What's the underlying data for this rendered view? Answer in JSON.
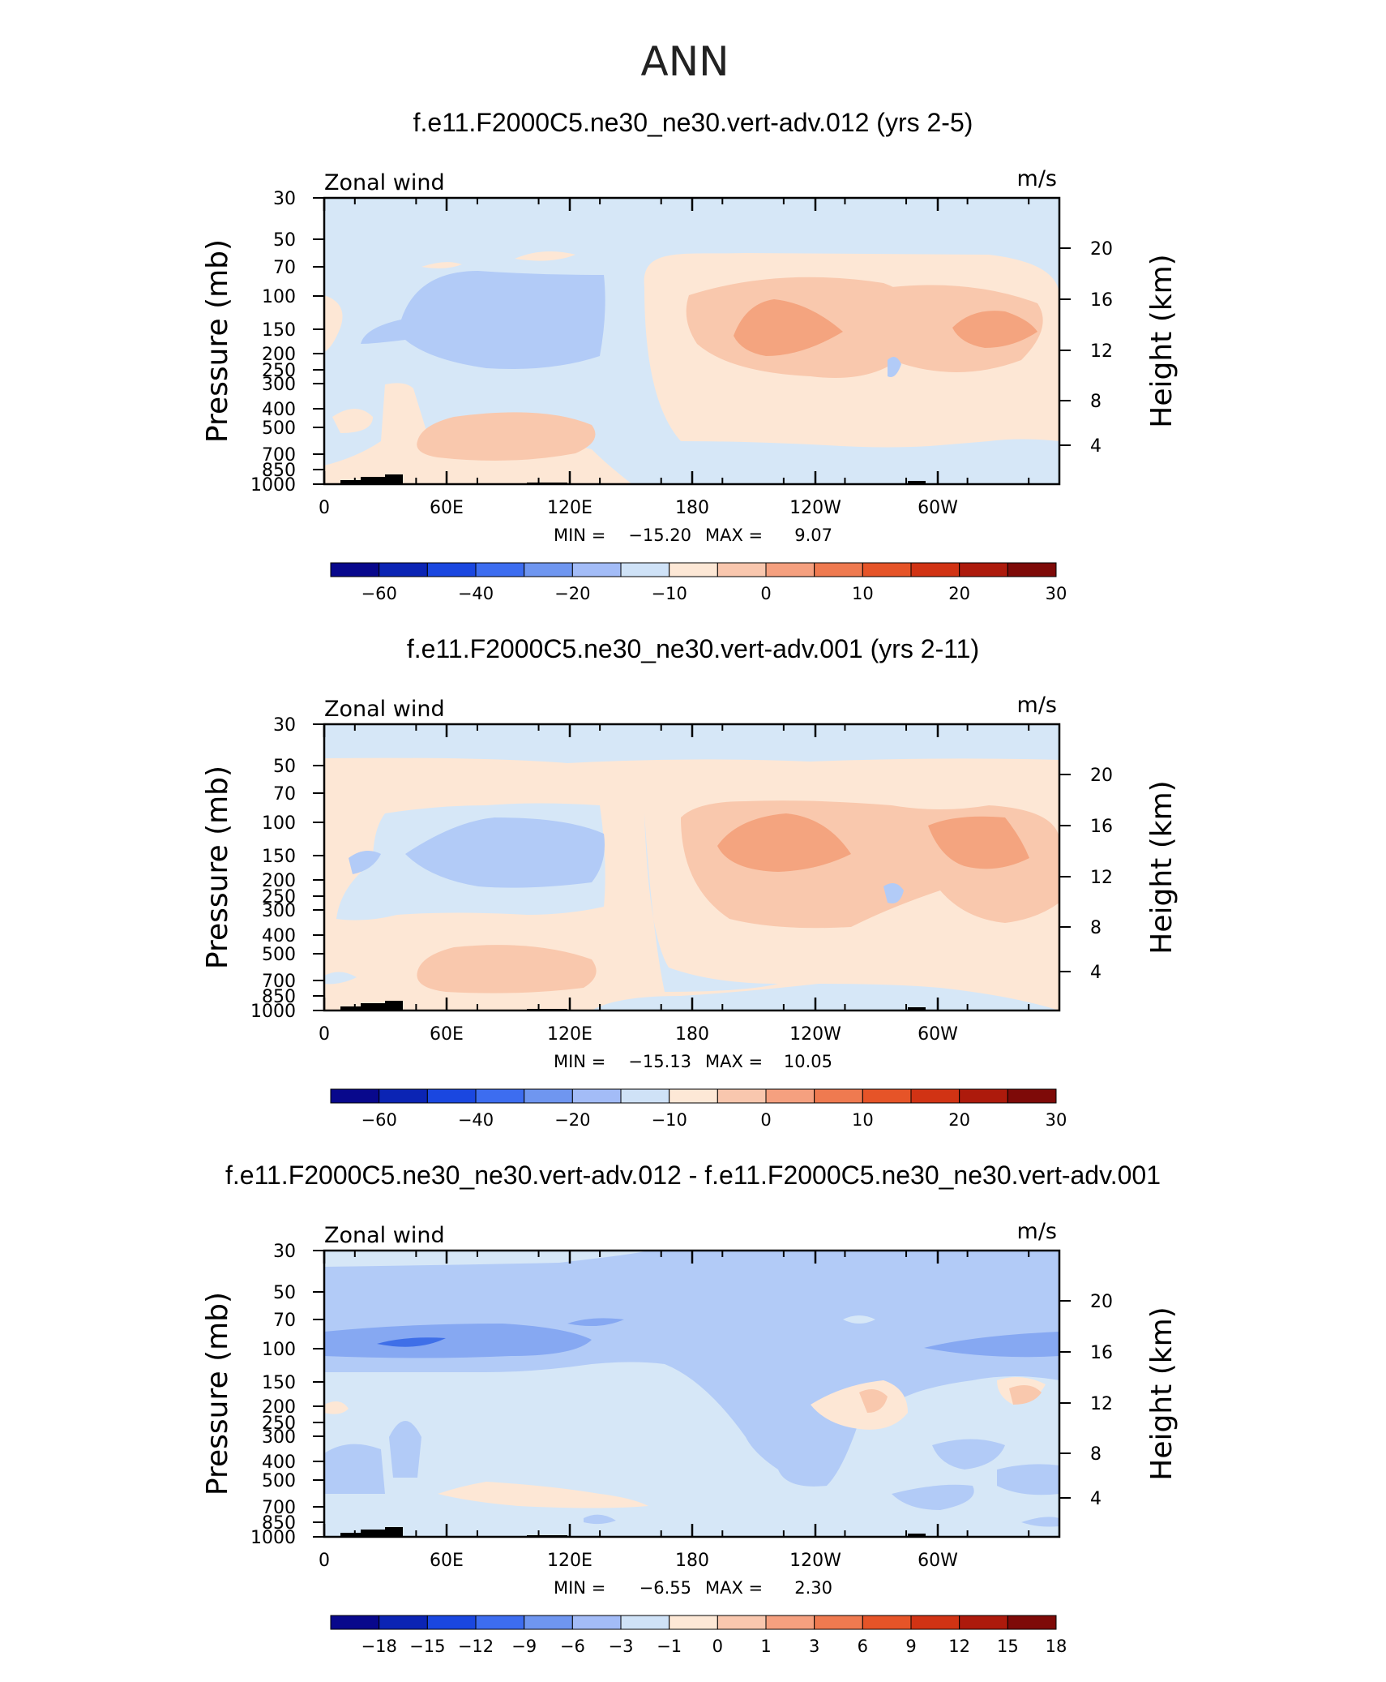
{
  "figure": {
    "main_title": "ANN"
  },
  "chart_data": [
    {
      "type": "contour",
      "title": "f.e11.F2000C5.ne30_ne30.vert-adv.012 (yrs 2-5)",
      "variable_label": "Zonal wind",
      "units": "m/s",
      "ylabel": "Pressure (mb)",
      "ylabel_right": "Height (km)",
      "x_ticks": [
        "0",
        "60E",
        "120E",
        "180",
        "120W",
        "60W"
      ],
      "y_ticks": [
        "30",
        "50",
        "70",
        "100",
        "150",
        "200",
        "250",
        "300",
        "400",
        "500",
        "700",
        "850",
        "1000"
      ],
      "y_right_ticks": [
        "20",
        "16",
        "12",
        "8",
        "4"
      ],
      "min_label": "MIN =",
      "min_value": "−15.20",
      "max_label": "MAX =",
      "max_value": "9.07",
      "min": -15.2,
      "max": 9.07,
      "colorbar_labels": [
        "−60",
        "−40",
        "−20",
        "−10",
        "0",
        "10",
        "20",
        "30"
      ],
      "colorbar_colors": [
        "#08088c",
        "#0b24b4",
        "#1a47e0",
        "#3d6df0",
        "#6f96f0",
        "#a3bcf7",
        "#cfe2f7",
        "#fde8d6",
        "#f9c7ae",
        "#f5a07f",
        "#ef7a50",
        "#e65428",
        "#d13314",
        "#ad1a0c",
        "#7e0a08"
      ]
    },
    {
      "type": "contour",
      "title": "f.e11.F2000C5.ne30_ne30.vert-adv.001 (yrs 2-11)",
      "variable_label": "Zonal wind",
      "units": "m/s",
      "ylabel": "Pressure (mb)",
      "ylabel_right": "Height (km)",
      "x_ticks": [
        "0",
        "60E",
        "120E",
        "180",
        "120W",
        "60W"
      ],
      "y_ticks": [
        "30",
        "50",
        "70",
        "100",
        "150",
        "200",
        "250",
        "300",
        "400",
        "500",
        "700",
        "850",
        "1000"
      ],
      "y_right_ticks": [
        "20",
        "16",
        "12",
        "8",
        "4"
      ],
      "min_label": "MIN =",
      "min_value": "−15.13",
      "max_label": "MAX =",
      "max_value": "10.05",
      "min": -15.13,
      "max": 10.05,
      "colorbar_labels": [
        "−60",
        "−40",
        "−20",
        "−10",
        "0",
        "10",
        "20",
        "30"
      ],
      "colorbar_colors": [
        "#08088c",
        "#0b24b4",
        "#1a47e0",
        "#3d6df0",
        "#6f96f0",
        "#a3bcf7",
        "#cfe2f7",
        "#fde8d6",
        "#f9c7ae",
        "#f5a07f",
        "#ef7a50",
        "#e65428",
        "#d13314",
        "#ad1a0c",
        "#7e0a08"
      ]
    },
    {
      "type": "contour",
      "title": "f.e11.F2000C5.ne30_ne30.vert-adv.012 - f.e11.F2000C5.ne30_ne30.vert-adv.001",
      "variable_label": "Zonal wind",
      "units": "m/s",
      "ylabel": "Pressure (mb)",
      "ylabel_right": "Height (km)",
      "x_ticks": [
        "0",
        "60E",
        "120E",
        "180",
        "120W",
        "60W"
      ],
      "y_ticks": [
        "30",
        "50",
        "70",
        "100",
        "150",
        "200",
        "250",
        "300",
        "400",
        "500",
        "700",
        "850",
        "1000"
      ],
      "y_right_ticks": [
        "20",
        "16",
        "12",
        "8",
        "4"
      ],
      "min_label": "MIN =",
      "min_value": "−6.55",
      "max_label": "MAX =",
      "max_value": "2.30",
      "min": -6.55,
      "max": 2.3,
      "colorbar_labels": [
        "−18",
        "−15",
        "−12",
        "−9",
        "−6",
        "−3",
        "−1",
        "0",
        "1",
        "3",
        "6",
        "9",
        "12",
        "15",
        "18"
      ],
      "colorbar_colors": [
        "#08088c",
        "#0b24b4",
        "#1a47e0",
        "#3d6df0",
        "#6f96f0",
        "#a3bcf7",
        "#cfe2f7",
        "#fde8d6",
        "#f9c7ae",
        "#f5a07f",
        "#ef7a50",
        "#e65428",
        "#d13314",
        "#ad1a0c",
        "#7e0a08"
      ]
    }
  ]
}
